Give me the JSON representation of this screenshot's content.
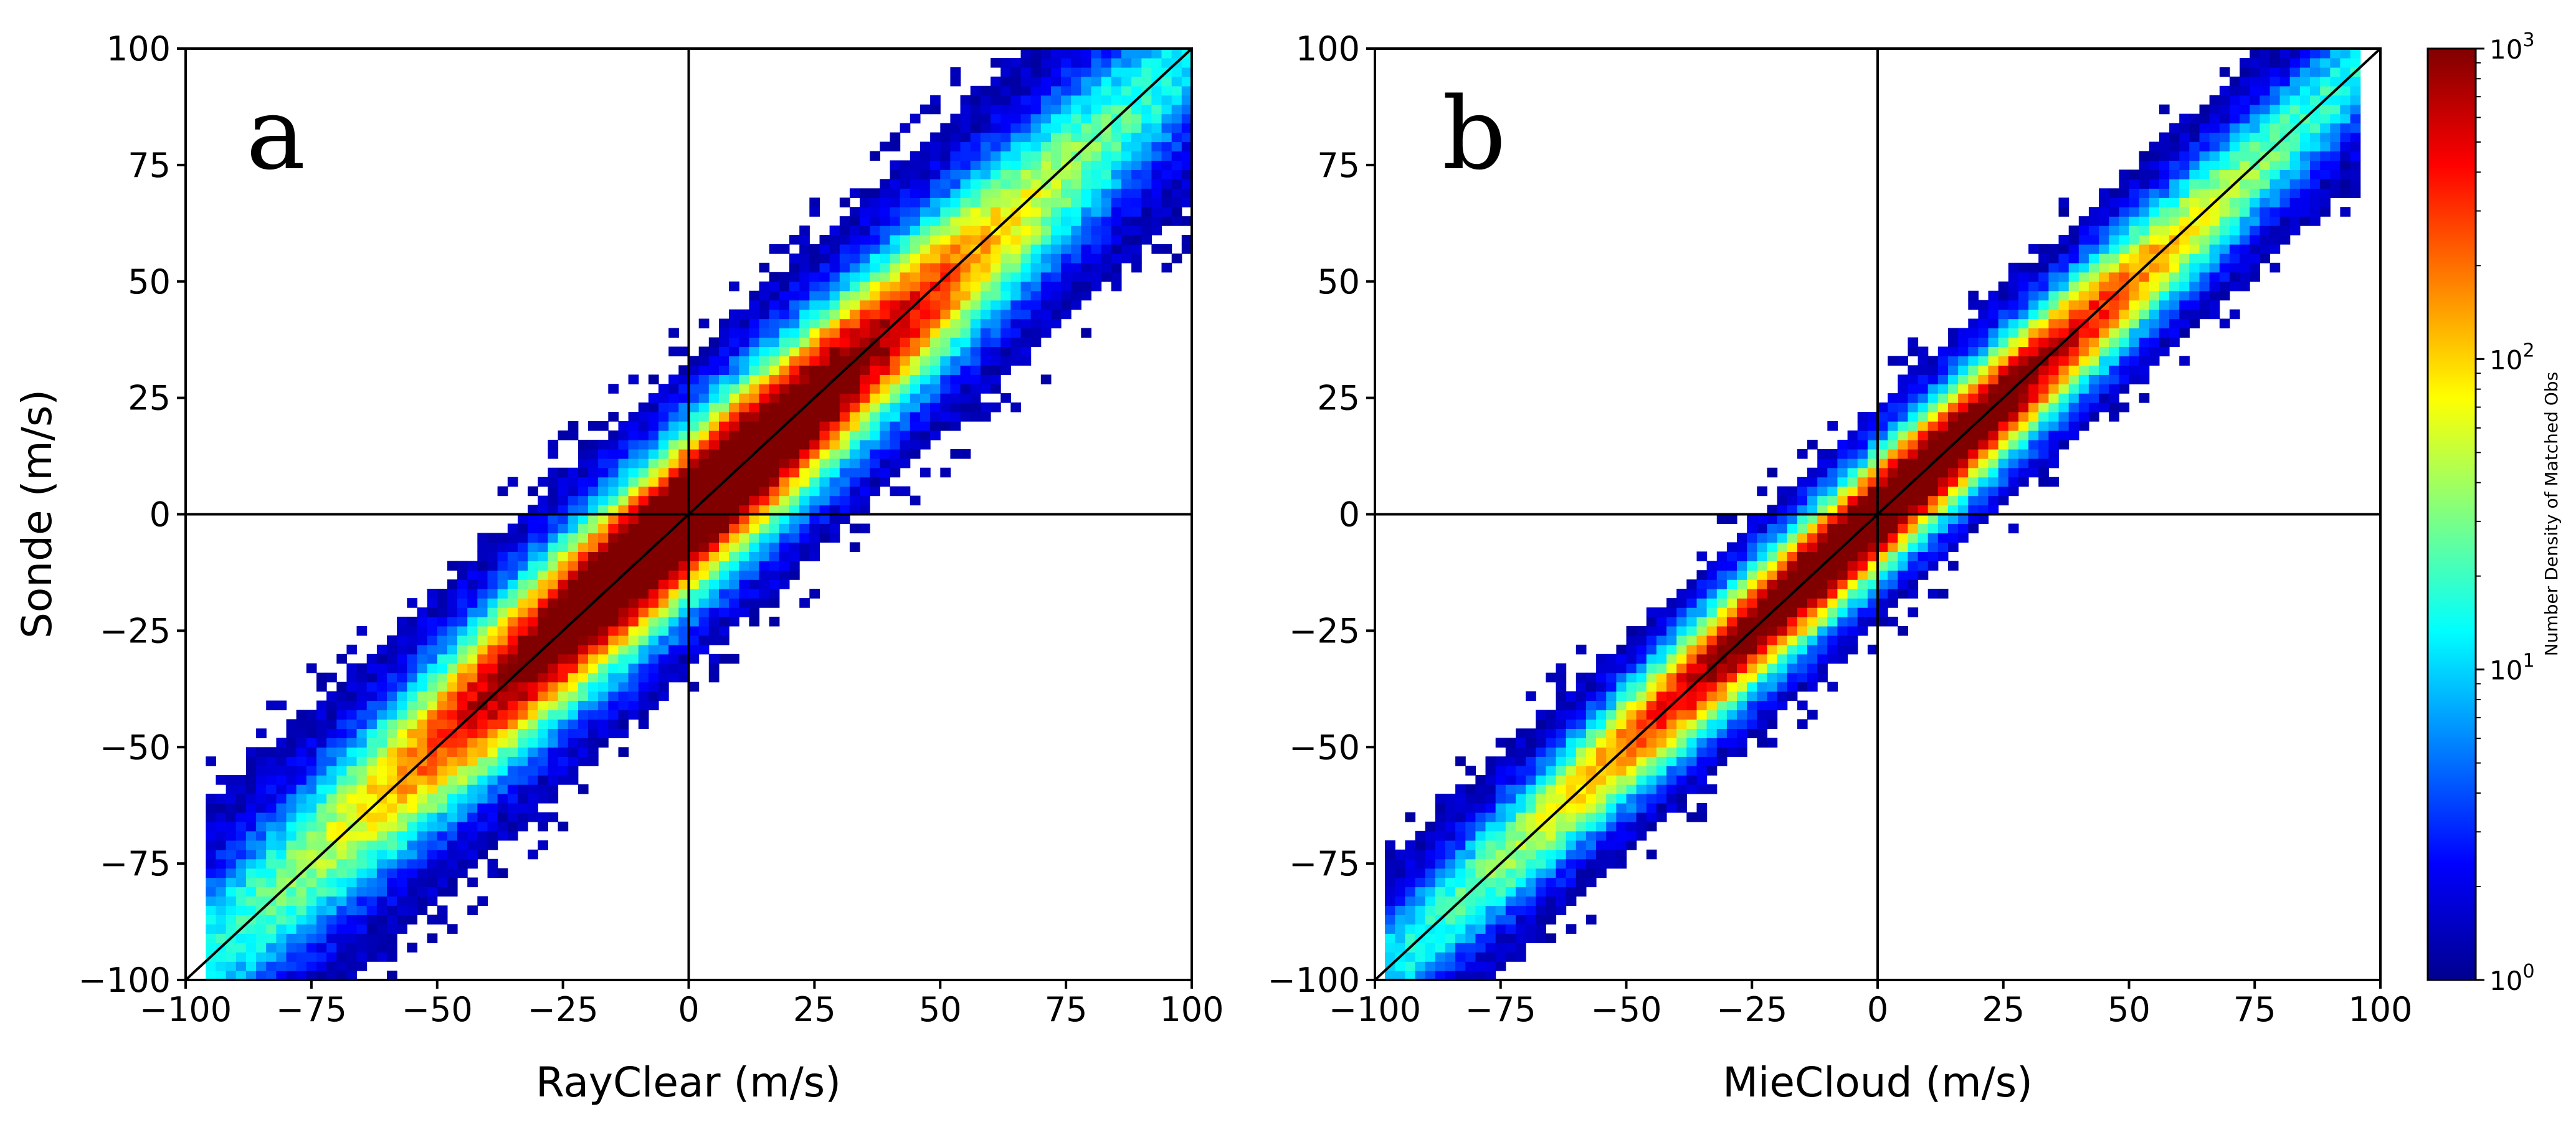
{
  "colors": {
    "background": "#ffffff",
    "axes": "#000000",
    "colormap": [
      "#00008f",
      "#0000ff",
      "#0080ff",
      "#00ffff",
      "#80ff80",
      "#ffff00",
      "#ff8000",
      "#ff0000",
      "#800000"
    ]
  },
  "chart_data": [
    {
      "type": "heatmap",
      "panel_label": "a",
      "xlabel": "RayClear (m/s)",
      "ylabel": "Sonde (m/s)",
      "xlim": [
        -100,
        100
      ],
      "ylim": [
        -100,
        100
      ],
      "xticks": [
        -100,
        -75,
        -50,
        -25,
        0,
        25,
        50,
        75,
        100
      ],
      "yticks": [
        -100,
        -75,
        -50,
        -25,
        0,
        25,
        50,
        75,
        100
      ],
      "xtick_labels": [
        "−100",
        "−75",
        "−50",
        "−25",
        "0",
        "25",
        "50",
        "75",
        "100"
      ],
      "ytick_labels": [
        "−100",
        "−75",
        "−50",
        "−25",
        "0",
        "25",
        "50",
        "75",
        "100"
      ],
      "reference_lines": [
        "x = 0",
        "y = 0",
        "y = x"
      ],
      "distribution": {
        "slope": 1.0,
        "spread_sigma": 9.0,
        "peak_x": 0,
        "peak_y": 0,
        "x_extent": [
          -95,
          100
        ],
        "peak_log10_density": 3.0
      }
    },
    {
      "type": "heatmap",
      "panel_label": "b",
      "xlabel": "MieCloud (m/s)",
      "ylabel": "",
      "xlim": [
        -100,
        100
      ],
      "ylim": [
        -100,
        100
      ],
      "xticks": [
        -100,
        -75,
        -50,
        -25,
        0,
        25,
        50,
        75,
        100
      ],
      "yticks": [
        -100,
        -75,
        -50,
        -25,
        0,
        25,
        50,
        75,
        100
      ],
      "xtick_labels": [
        "−100",
        "−75",
        "−50",
        "−25",
        "0",
        "25",
        "50",
        "75",
        "100"
      ],
      "ytick_labels": [
        "−100",
        "−75",
        "−50",
        "−25",
        "0",
        "25",
        "50",
        "75",
        "100"
      ],
      "reference_lines": [
        "x = 0",
        "y = 0",
        "y = x"
      ],
      "distribution": {
        "slope": 1.0,
        "spread_sigma": 6.5,
        "peak_x": 0,
        "peak_y": 0,
        "x_extent": [
          -98,
          96
        ],
        "peak_log10_density": 2.75
      }
    }
  ],
  "colorbar": {
    "label": "Number Density of Matched Obs",
    "scale": "log",
    "range": [
      1,
      1000
    ],
    "ticks": [
      {
        "value": 1,
        "base": "10",
        "exp": "0"
      },
      {
        "value": 10,
        "base": "10",
        "exp": "1"
      },
      {
        "value": 100,
        "base": "10",
        "exp": "2"
      },
      {
        "value": 1000,
        "base": "10",
        "exp": "3"
      }
    ]
  }
}
